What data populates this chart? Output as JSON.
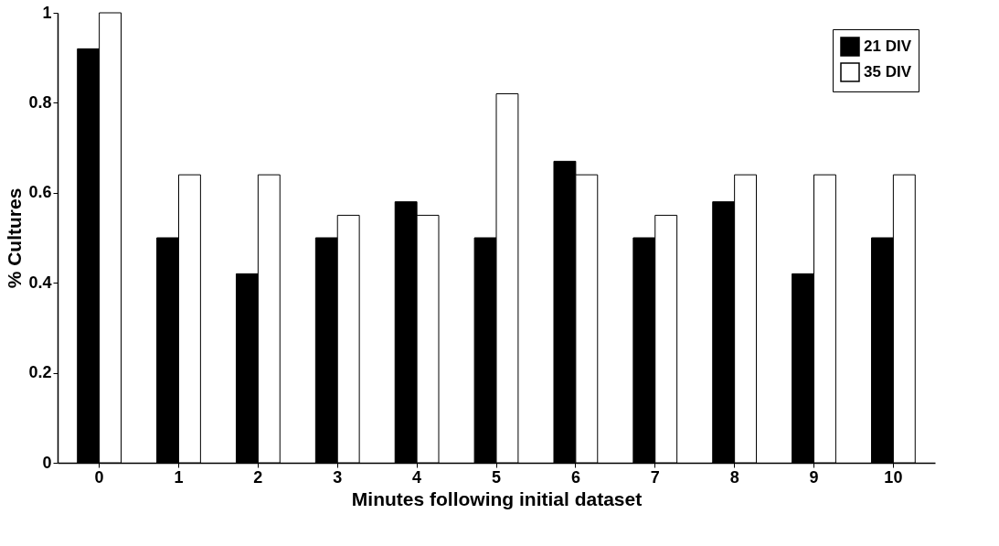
{
  "chart_data": {
    "type": "bar",
    "xlabel": "Minutes following initial dataset",
    "ylabel": "% Cultures",
    "categories": [
      "0",
      "1",
      "2",
      "3",
      "4",
      "5",
      "6",
      "7",
      "8",
      "9",
      "10"
    ],
    "series": [
      {
        "name": "21 DIV",
        "color": "#000000",
        "values": [
          0.92,
          0.5,
          0.42,
          0.5,
          0.58,
          0.5,
          0.67,
          0.5,
          0.58,
          0.42,
          0.5
        ]
      },
      {
        "name": "35 DIV",
        "color": "#ffffff",
        "values": [
          1,
          0.64,
          0.64,
          0.55,
          0.55,
          0.82,
          0.64,
          0.55,
          0.64,
          0.64,
          0.64
        ]
      }
    ],
    "ylim": [
      0,
      1
    ],
    "yticks": [
      0,
      0.2,
      0.4,
      0.6,
      0.8,
      1
    ],
    "grid": false,
    "legend": "top right"
  }
}
